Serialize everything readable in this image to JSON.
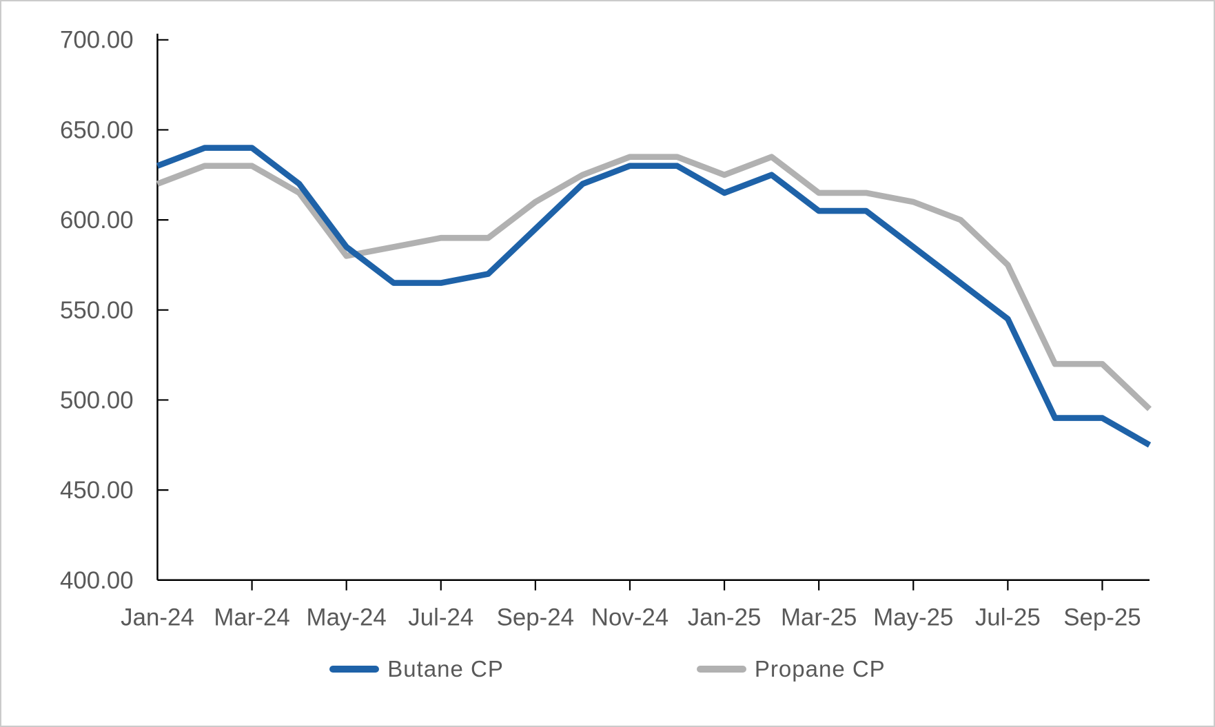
{
  "chart_data": {
    "type": "line",
    "title": "",
    "categories": [
      "Jan-24",
      "Feb-24",
      "Mar-24",
      "Apr-24",
      "May-24",
      "Jun-24",
      "Jul-24",
      "Aug-24",
      "Sep-24",
      "Oct-24",
      "Nov-24",
      "Dec-24",
      "Jan-25",
      "Feb-25",
      "Mar-25",
      "Apr-25",
      "May-25",
      "Jun-25",
      "Jul-25",
      "Aug-25",
      "Sep-25",
      "Oct-25"
    ],
    "x_tick_labels": [
      "Jan-24",
      "Mar-24",
      "May-24",
      "Jul-24",
      "Sep-24",
      "Nov-24",
      "Jan-25",
      "Mar-25",
      "May-25",
      "Jul-25",
      "Sep-25"
    ],
    "y_tick_labels": [
      "400.00",
      "450.00",
      "500.00",
      "550.00",
      "600.00",
      "650.00",
      "700.00"
    ],
    "ylim": [
      400,
      700
    ],
    "y_tick_step": 50,
    "grid": false,
    "legend_position": "bottom-center",
    "series": [
      {
        "name": "Butane CP",
        "color": "#1E62A8",
        "values": [
          630,
          640,
          640,
          620,
          585,
          565,
          565,
          570,
          595,
          620,
          630,
          630,
          615,
          625,
          605,
          605,
          585,
          565,
          545,
          490,
          490,
          475
        ]
      },
      {
        "name": "Propane CP",
        "color": "#B1B1B1",
        "values": [
          620,
          630,
          630,
          615,
          580,
          585,
          590,
          590,
          610,
          625,
          635,
          635,
          625,
          635,
          615,
          615,
          610,
          600,
          575,
          520,
          520,
          495
        ]
      }
    ],
    "axis_text_color": "#595959",
    "axis_line_color": "#000000"
  }
}
